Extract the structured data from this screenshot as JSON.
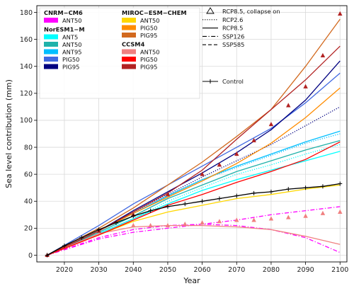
{
  "chart_data": {
    "type": "line",
    "xlabel": "Year",
    "ylabel": "Sea level contribution (mm)",
    "xlim": [
      2012,
      2102
    ],
    "ylim": [
      -5,
      185
    ],
    "xticks": [
      2020,
      2030,
      2040,
      2050,
      2060,
      2070,
      2080,
      2090,
      2100
    ],
    "yticks": [
      0,
      20,
      40,
      60,
      80,
      100,
      120,
      140,
      160,
      180
    ],
    "grid": true,
    "legend_placement": "top-left and top-right",
    "legend": {
      "groups": [
        {
          "title": "CNRM−CM6",
          "entries": [
            {
              "label": "ANT50",
              "color": "#ff00ff"
            }
          ]
        },
        {
          "title": "NorESM1−M",
          "entries": [
            {
              "label": "ANT5",
              "color": "#00ffff"
            },
            {
              "label": "ANT50",
              "color": "#20b2aa"
            },
            {
              "label": "ANT95",
              "color": "#00bfff"
            },
            {
              "label": "PIG50",
              "color": "#4169e1"
            },
            {
              "label": "PIG95",
              "color": "#000080"
            }
          ]
        },
        {
          "title": "MIROC−ESM−CHEM",
          "entries": [
            {
              "label": "ANT50",
              "color": "#ffd700"
            },
            {
              "label": "PIG50",
              "color": "#ff8c00"
            },
            {
              "label": "PIG95",
              "color": "#d2691e"
            }
          ]
        },
        {
          "title": "CCSM4",
          "entries": [
            {
              "label": "ANT50",
              "color": "#f08080"
            },
            {
              "label": "PIG50",
              "color": "#ff0000"
            },
            {
              "label": "PIG95",
              "color": "#b22222"
            }
          ]
        }
      ],
      "styles": [
        {
          "label": "RCP8.5, collapse on",
          "symbol": "triangle"
        },
        {
          "label": "RCP2.6",
          "symbol": "dotted"
        },
        {
          "label": "RCP8.5",
          "symbol": "solid"
        },
        {
          "label": "SSP126",
          "symbol": "dashdot"
        },
        {
          "label": "SSP585",
          "symbol": "dashed"
        }
      ],
      "control": {
        "label": "Control",
        "symbol": "plus-line"
      }
    },
    "series": [
      {
        "group": "NorESM1−M",
        "name": "ANT5",
        "scenario": "RCP8.5",
        "color": "#00ffff",
        "style": "solid",
        "x": [
          2015,
          2030,
          2040,
          2050,
          2060,
          2070,
          2080,
          2090,
          2100
        ],
        "y": [
          0,
          16,
          27,
          38,
          48,
          56,
          63,
          70,
          77
        ]
      },
      {
        "group": "NorESM1−M",
        "name": "ANT5",
        "scenario": "RCP2.6",
        "color": "#00ffff",
        "style": "dotted",
        "x": [
          2015,
          2030,
          2040,
          2050,
          2060,
          2070,
          2080,
          2090,
          2100
        ],
        "y": [
          0,
          16,
          27,
          40,
          50,
          60,
          67,
          75,
          82
        ]
      },
      {
        "group": "NorESM1−M",
        "name": "ANT50",
        "scenario": "RCP8.5",
        "color": "#20b2aa",
        "style": "solid",
        "x": [
          2015,
          2030,
          2040,
          2050,
          2060,
          2070,
          2080,
          2090,
          2100
        ],
        "y": [
          0,
          17,
          29,
          42,
          52,
          62,
          70,
          78,
          85
        ]
      },
      {
        "group": "NorESM1−M",
        "name": "ANT95",
        "scenario": "RCP8.5",
        "color": "#00bfff",
        "style": "solid",
        "x": [
          2015,
          2030,
          2040,
          2050,
          2060,
          2070,
          2080,
          2090,
          2100
        ],
        "y": [
          0,
          18,
          31,
          44,
          56,
          66,
          75,
          84,
          92
        ]
      },
      {
        "group": "NorESM1−M",
        "name": "ANT95",
        "scenario": "RCP2.6",
        "color": "#00bfff",
        "style": "dotted",
        "x": [
          2015,
          2030,
          2040,
          2050,
          2060,
          2070,
          2080,
          2090,
          2100
        ],
        "y": [
          0,
          18,
          31,
          44,
          56,
          65,
          74,
          83,
          90
        ]
      },
      {
        "group": "NorESM1−M",
        "name": "PIG50",
        "scenario": "RCP8.5",
        "color": "#4169e1",
        "style": "solid",
        "x": [
          2015,
          2030,
          2040,
          2050,
          2060,
          2070,
          2080,
          2090,
          2100
        ],
        "y": [
          0,
          22,
          38,
          52,
          66,
          80,
          94,
          113,
          135
        ]
      },
      {
        "group": "NorESM1−M",
        "name": "PIG95",
        "scenario": "RCP8.5",
        "color": "#000080",
        "style": "solid",
        "x": [
          2015,
          2030,
          2040,
          2050,
          2060,
          2070,
          2080,
          2090,
          2100
        ],
        "y": [
          0,
          18,
          33,
          47,
          61,
          76,
          93,
          115,
          144
        ]
      },
      {
        "group": "NorESM1−M",
        "name": "PIG95",
        "scenario": "RCP2.6",
        "color": "#000080",
        "style": "dotted",
        "x": [
          2015,
          2030,
          2040,
          2050,
          2060,
          2070,
          2080,
          2090,
          2100
        ],
        "y": [
          0,
          18,
          32,
          45,
          58,
          70,
          82,
          96,
          110
        ]
      },
      {
        "group": "CNRM−CM6",
        "name": "ANT50",
        "scenario": "SSP585",
        "color": "#ff00ff",
        "style": "dashdot",
        "x": [
          2015,
          2030,
          2040,
          2050,
          2060,
          2070,
          2080,
          2090,
          2100
        ],
        "y": [
          0,
          12,
          17,
          20,
          23,
          26,
          30,
          33,
          36
        ]
      },
      {
        "group": "CNRM−CM6",
        "name": "ANT50",
        "scenario": "SSP126",
        "color": "#ff00ff",
        "style": "dashdot",
        "x": [
          2015,
          2030,
          2040,
          2050,
          2060,
          2070,
          2080,
          2090,
          2100
        ],
        "y": [
          0,
          13,
          19,
          22,
          23,
          22,
          19,
          13,
          2
        ]
      },
      {
        "group": "MIROC−ESM−CHEM",
        "name": "ANT50",
        "scenario": "RCP8.5",
        "color": "#ffd700",
        "style": "solid",
        "x": [
          2015,
          2030,
          2040,
          2050,
          2060,
          2070,
          2080,
          2090,
          2100
        ],
        "y": [
          0,
          15,
          25,
          32,
          37,
          42,
          45,
          49,
          52
        ]
      },
      {
        "group": "MIROC−ESM−CHEM",
        "name": "PIG50",
        "scenario": "RCP8.5",
        "color": "#ff8c00",
        "style": "solid",
        "x": [
          2015,
          2030,
          2040,
          2050,
          2060,
          2070,
          2080,
          2090,
          2100
        ],
        "y": [
          0,
          18,
          31,
          43,
          55,
          68,
          83,
          102,
          124
        ]
      },
      {
        "group": "MIROC−ESM−CHEM",
        "name": "PIG95",
        "scenario": "RCP8.5",
        "color": "#d2691e",
        "style": "solid",
        "x": [
          2015,
          2030,
          2040,
          2050,
          2060,
          2070,
          2080,
          2090,
          2100
        ],
        "y": [
          0,
          20,
          35,
          52,
          69,
          88,
          108,
          140,
          175
        ]
      },
      {
        "group": "CCSM4",
        "name": "ANT50",
        "scenario": "RCP8.5",
        "color": "#f08080",
        "style": "solid",
        "x": [
          2015,
          2030,
          2040,
          2050,
          2060,
          2070,
          2080,
          2090,
          2100
        ],
        "y": [
          0,
          16,
          21,
          22,
          22,
          21,
          19,
          14,
          8
        ]
      },
      {
        "group": "CCSM4",
        "name": "PIG50",
        "scenario": "RCP8.5",
        "color": "#ff0000",
        "style": "solid",
        "x": [
          2015,
          2030,
          2040,
          2050,
          2060,
          2070,
          2080,
          2090,
          2100
        ],
        "y": [
          0,
          15,
          26,
          37,
          45,
          54,
          62,
          71,
          84
        ]
      },
      {
        "group": "CCSM4",
        "name": "PIG95",
        "scenario": "RCP8.5",
        "color": "#b22222",
        "style": "solid",
        "x": [
          2015,
          2030,
          2040,
          2050,
          2060,
          2070,
          2080,
          2090,
          2100
        ],
        "y": [
          0,
          18,
          32,
          46,
          63,
          86,
          108,
          130,
          155
        ]
      },
      {
        "group": "CCSM4",
        "name": "PIG95",
        "scenario": "RCP8.5, collapse on",
        "color": "#b22222",
        "style": "triangle",
        "x": [
          2015,
          2030,
          2040,
          2050,
          2060,
          2065,
          2070,
          2075,
          2080,
          2085,
          2090,
          2095,
          2100
        ],
        "y": [
          0,
          18,
          30,
          45,
          60,
          67,
          75,
          85,
          97,
          111,
          125,
          148,
          179
        ]
      },
      {
        "group": "CCSM4",
        "name": "ANT50",
        "scenario": "RCP8.5, collapse on",
        "color": "#f08080",
        "style": "triangle",
        "x": [
          2040,
          2045,
          2050,
          2055,
          2060,
          2065,
          2070,
          2075,
          2080,
          2085,
          2090,
          2095,
          2100
        ],
        "y": [
          22,
          22,
          22,
          23,
          24,
          25,
          26,
          26,
          27,
          28,
          29,
          31,
          32
        ]
      },
      {
        "group": "",
        "name": "Control",
        "scenario": "Control",
        "color": "#000000",
        "style": "plus-line",
        "x": [
          2015,
          2020,
          2025,
          2030,
          2035,
          2040,
          2045,
          2050,
          2055,
          2060,
          2065,
          2070,
          2075,
          2080,
          2085,
          2090,
          2095,
          2100
        ],
        "y": [
          0,
          7,
          13,
          19,
          24,
          29,
          33,
          36,
          38,
          40,
          42,
          44,
          46,
          47,
          49,
          50,
          51,
          53
        ]
      }
    ]
  }
}
